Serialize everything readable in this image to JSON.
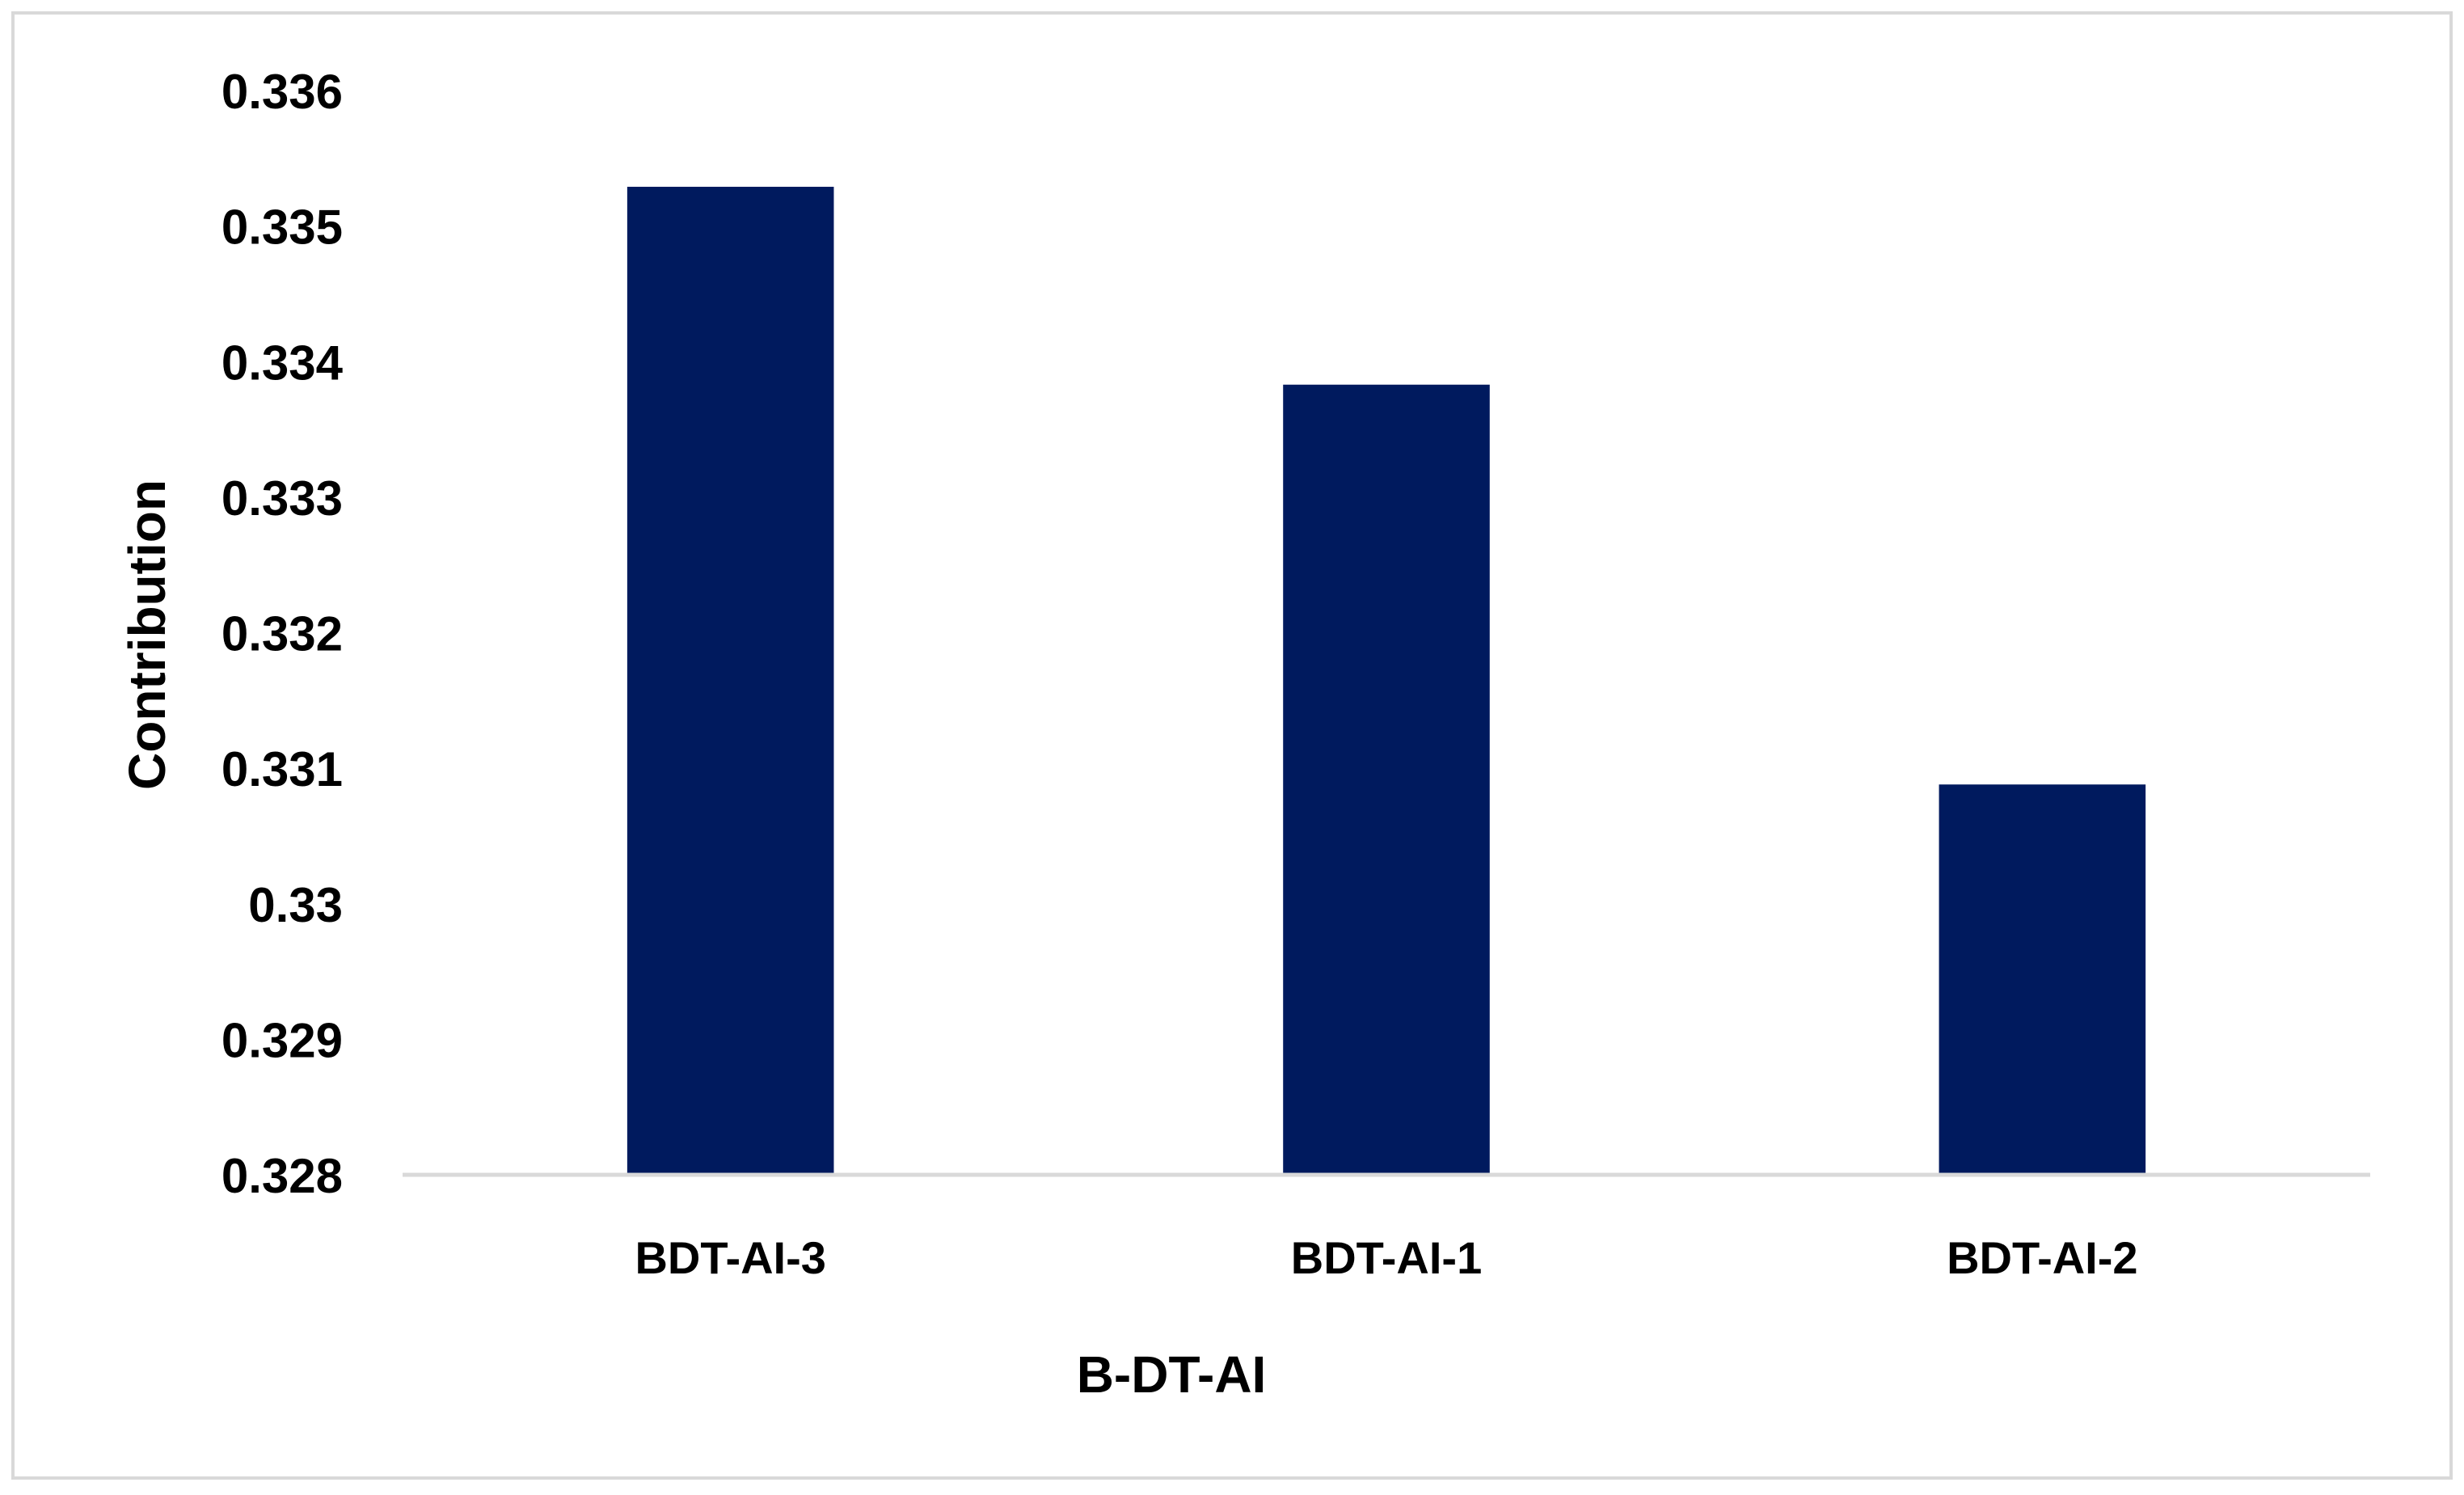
{
  "chart_data": {
    "type": "bar",
    "title": "",
    "xlabel": "B-DT-AI",
    "ylabel": "Contribution",
    "categories": [
      "BDT-AI-3",
      "BDT-AI-1",
      "BDT-AI-2"
    ],
    "values": [
      0.33529,
      0.33383,
      0.33088
    ],
    "ylim": [
      0.328,
      0.336
    ],
    "yticks": [
      "0.328",
      "0.329",
      "0.33",
      "0.331",
      "0.332",
      "0.333",
      "0.334",
      "0.335",
      "0.336"
    ],
    "grid": false,
    "legend": "none",
    "colors": {
      "bar": "#001a5e",
      "axis": "#d9d9d9",
      "border": "#d9d9d9",
      "text": "#000000"
    }
  }
}
